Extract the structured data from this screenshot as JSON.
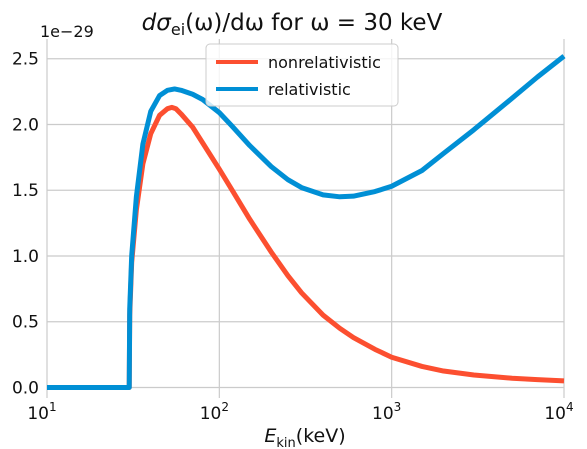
{
  "chart_data": {
    "type": "line",
    "title_parts": {
      "d": "d",
      "sigma": "σ",
      "sub": "ei",
      "rest": "(ω)/dω for ω = 30 keV"
    },
    "xlabel_parts": {
      "main": "E",
      "sub": "kin",
      "rest": "(keV)"
    },
    "xscale": "log",
    "xlim": [
      10,
      10000
    ],
    "ylim": [
      -0.08,
      2.65
    ],
    "y_offset_label": "1e−29",
    "grid": true,
    "legend_position": "top-center",
    "x_ticks": [
      {
        "value": 10,
        "base": "10",
        "exp": "1"
      },
      {
        "value": 100,
        "base": "10",
        "exp": "2"
      },
      {
        "value": 1000,
        "base": "10",
        "exp": "3"
      },
      {
        "value": 10000,
        "base": "10",
        "exp": "4"
      }
    ],
    "y_ticks": [
      {
        "value": 0.0,
        "label": "0.0"
      },
      {
        "value": 0.5,
        "label": "0.5"
      },
      {
        "value": 1.0,
        "label": "1.0"
      },
      {
        "value": 1.5,
        "label": "1.5"
      },
      {
        "value": 2.0,
        "label": "2.0"
      },
      {
        "value": 2.5,
        "label": "2.5"
      }
    ],
    "series": [
      {
        "name": "nonrelativistic",
        "color": "#fc4f30",
        "x": [
          10,
          29.5,
          30,
          30.2,
          31,
          33,
          36,
          40,
          45,
          50,
          53,
          56,
          60,
          70,
          80,
          100,
          120,
          150,
          200,
          250,
          300,
          400,
          500,
          600,
          800,
          1000,
          1500,
          2000,
          3000,
          5000,
          7000,
          10000
        ],
        "y": [
          0,
          0,
          0,
          0.55,
          0.95,
          1.35,
          1.7,
          1.93,
          2.07,
          2.12,
          2.13,
          2.12,
          2.08,
          1.98,
          1.86,
          1.66,
          1.49,
          1.28,
          1.03,
          0.85,
          0.72,
          0.55,
          0.45,
          0.38,
          0.29,
          0.23,
          0.16,
          0.125,
          0.095,
          0.07,
          0.06,
          0.05
        ]
      },
      {
        "name": "relativistic",
        "color": "#008fd5",
        "x": [
          10,
          29.5,
          30,
          30.2,
          31,
          33,
          36,
          40,
          45,
          50,
          55,
          60,
          70,
          80,
          100,
          120,
          150,
          200,
          250,
          300,
          400,
          500,
          600,
          800,
          1000,
          1500,
          2000,
          3000,
          5000,
          7000,
          10000
        ],
        "y": [
          0,
          0,
          0,
          0.6,
          1.0,
          1.45,
          1.85,
          2.1,
          2.22,
          2.26,
          2.27,
          2.26,
          2.23,
          2.19,
          2.09,
          1.98,
          1.84,
          1.68,
          1.58,
          1.52,
          1.465,
          1.45,
          1.455,
          1.49,
          1.53,
          1.65,
          1.78,
          1.96,
          2.2,
          2.36,
          2.52
        ]
      }
    ]
  }
}
